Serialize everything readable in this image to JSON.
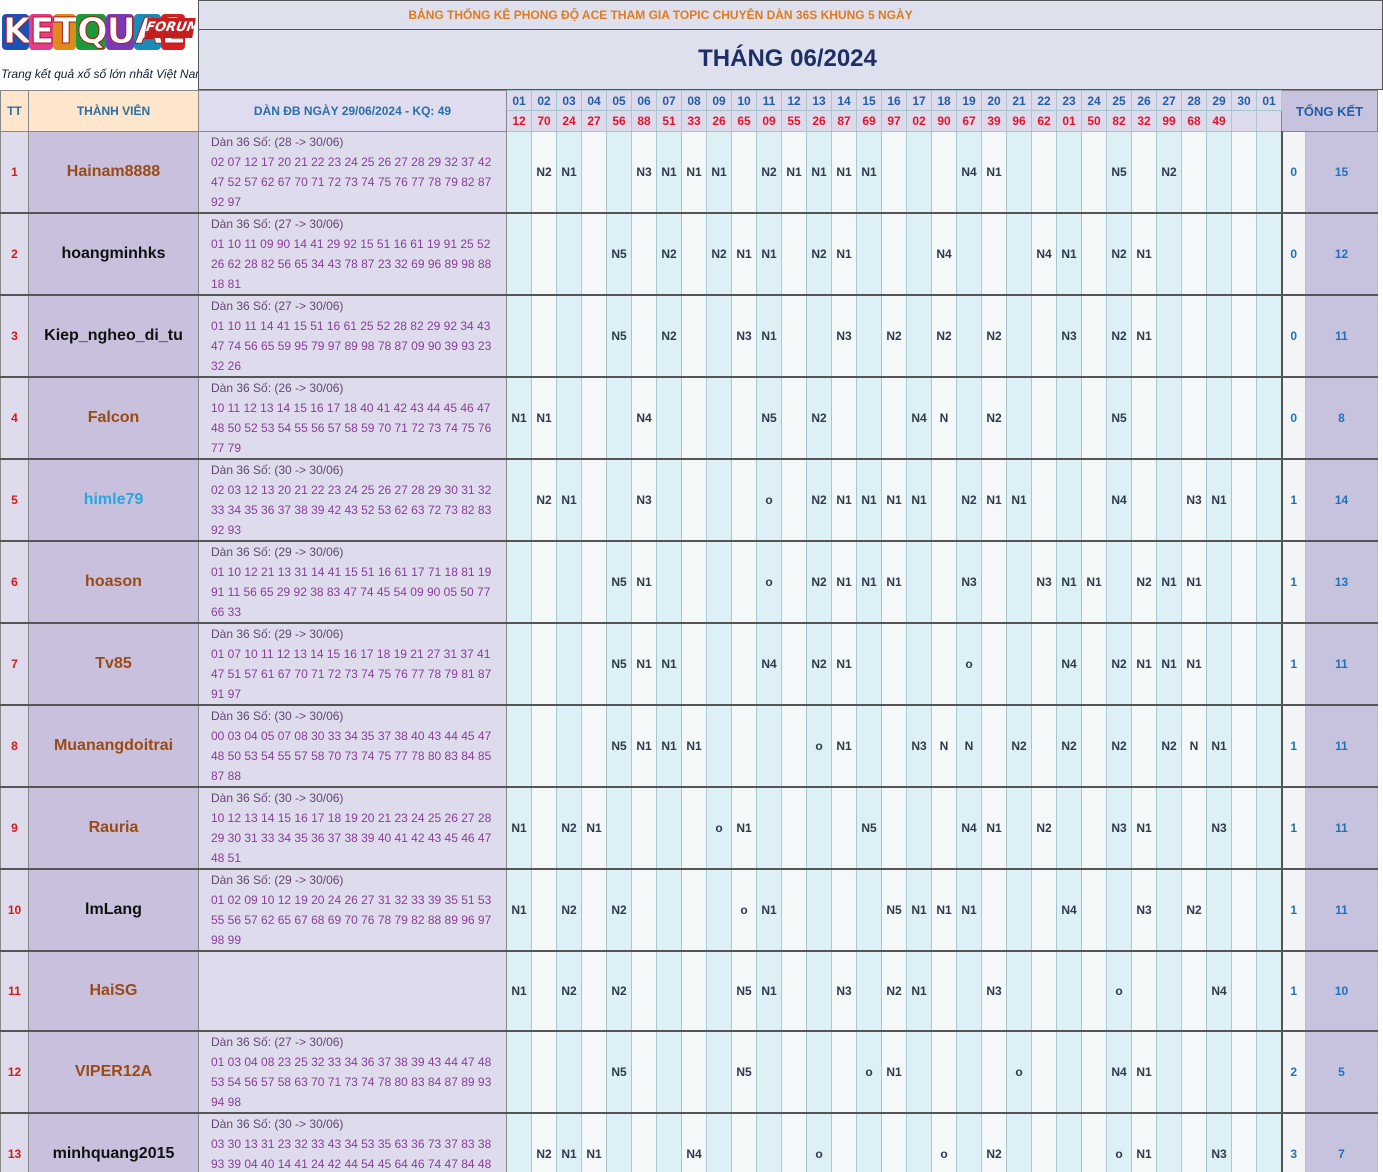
{
  "logo": {
    "brand_letters": [
      "K",
      "E",
      "T",
      "Q",
      "U",
      "A",
      "2"
    ],
    "forum_label": "FORUM",
    "tagline": "Trang kết quả xổ số lớn nhất Việt Nam"
  },
  "header": {
    "title": "BẢNG THỐNG KÊ PHONG ĐỘ ACE THAM GIA TOPIC CHUYÊN DÀN 36S KHUNG 5 NGÀY",
    "month": "THÁNG 06/2024"
  },
  "columns": {
    "tt": "TT",
    "member": "THÀNH VIÊN",
    "dan": "DÀN ĐB NGÀY 29/06/2024 - KQ: 49",
    "summary": "TỔNG KẾT"
  },
  "days": [
    "01",
    "02",
    "03",
    "04",
    "05",
    "06",
    "07",
    "08",
    "09",
    "10",
    "11",
    "12",
    "13",
    "14",
    "15",
    "16",
    "17",
    "18",
    "19",
    "20",
    "21",
    "22",
    "23",
    "24",
    "25",
    "26",
    "27",
    "28",
    "29",
    "30",
    "01"
  ],
  "results": [
    "12",
    "70",
    "24",
    "27",
    "56",
    "88",
    "51",
    "33",
    "26",
    "65",
    "09",
    "55",
    "26",
    "87",
    "69",
    "97",
    "02",
    "90",
    "67",
    "39",
    "96",
    "62",
    "01",
    "50",
    "82",
    "32",
    "99",
    "68",
    "49",
    "",
    ""
  ],
  "colors": {
    "member_brown": "#9a4a14",
    "member_black": "#111111",
    "member_cyan": "#24a8e0",
    "accent": "#e07a1d",
    "title_navy": "#1c2f66"
  },
  "rows": [
    {
      "tt": "1",
      "name": "Hainam8888",
      "name_color": "member_brown",
      "dan_head": "Dàn 36 Số: (28 -> 30/06)",
      "dan_body": "02 07 12 17 20 21 22 23 24 25 26 27 28 29 32 37 42 47 52 57 62 67 70 71 72 73 74 75 76 77 78 79 82 87 92 97",
      "marks": [
        "",
        "N2",
        "N1",
        "",
        "",
        "N3",
        "N1",
        "N1",
        "N1",
        "",
        "N2",
        "N1",
        "N1",
        "N1",
        "N1",
        "",
        "",
        "",
        "N4",
        "N1",
        "",
        "",
        "",
        "",
        "N5",
        "",
        "N2",
        "",
        "",
        "",
        ""
      ],
      "w": "0",
      "total": "15"
    },
    {
      "tt": "2",
      "name": "hoangminhks",
      "name_color": "member_black",
      "dan_head": "Dàn 36 Số: (27 -> 30/06)",
      "dan_body": "01 10 11 09 90 14 41 29 92 15 51 16 61 19 91 25 52 26 62 28 82 56 65 34 43 78 87 23 32 69 96 89 98 88 18 81",
      "marks": [
        "",
        "",
        "",
        "",
        "N5",
        "",
        "N2",
        "",
        "N2",
        "N1",
        "N1",
        "",
        "N2",
        "N1",
        "",
        "",
        "",
        "N4",
        "",
        "",
        "",
        "N4",
        "N1",
        "",
        "N2",
        "N1",
        "",
        "",
        "",
        "",
        ""
      ],
      "w": "0",
      "total": "12"
    },
    {
      "tt": "3",
      "name": "Kiep_ngheo_di_tu",
      "name_color": "member_black",
      "dan_head": "Dàn 36 Số: (27 -> 30/06)",
      "dan_body": "01 10 11 14 41 15 51 16 61 25 52 28 82 29 92 34 43 47 74 56 65 59 95 79 97 89 98 78 87 09 90 39 93 23 32 26",
      "marks": [
        "",
        "",
        "",
        "",
        "N5",
        "",
        "N2",
        "",
        "",
        "N3",
        "N1",
        "",
        "",
        "N3",
        "",
        "N2",
        "",
        "N2",
        "",
        "N2",
        "",
        "",
        "N3",
        "",
        "N2",
        "N1",
        "",
        "",
        "",
        "",
        ""
      ],
      "w": "0",
      "total": "11"
    },
    {
      "tt": "4",
      "name": "Falcon",
      "name_color": "member_brown",
      "dan_head": "Dàn 36 Số: (26 -> 30/06)",
      "dan_body": "10 11 12 13 14 15 16 17 18 40 41 42 43 44 45 46 47 48 50 52 53 54 55 56 57 58 59 70 71 72 73 74 75 76 77 79",
      "marks": [
        "N1",
        "N1",
        "",
        "",
        "",
        "N4",
        "",
        "",
        "",
        "",
        "N5",
        "",
        "N2",
        "",
        "",
        "",
        "N4",
        "N",
        "",
        "N2",
        "",
        "",
        "",
        "",
        "N5",
        "",
        "",
        "",
        "",
        "",
        ""
      ],
      "w": "0",
      "total": "8"
    },
    {
      "tt": "5",
      "name": "himle79",
      "name_color": "member_cyan",
      "dan_head": "Dàn 36 Số: (30 -> 30/06)",
      "dan_body": "02 03 12 13 20 21 22 23 24 25 26 27 28 29 30 31 32 33 34 35 36 37 38 39 42 43 52 53 62 63 72 73 82 83 92 93",
      "marks": [
        "",
        "N2",
        "N1",
        "",
        "",
        "N3",
        "",
        "",
        "",
        "",
        "o",
        "",
        "N2",
        "N1",
        "N1",
        "N1",
        "N1",
        "",
        "N2",
        "N1",
        "N1",
        "",
        "",
        "",
        "N4",
        "",
        "",
        "N3",
        "N1",
        "",
        ""
      ],
      "w": "1",
      "total": "14"
    },
    {
      "tt": "6",
      "name": "hoason",
      "name_color": "member_brown",
      "dan_head": "Dàn 36 Số: (29 -> 30/06)",
      "dan_body": "01 10 12 21 13 31 14 41 15 51 16 61 17 71 18 81 19 91 11 56 65 29 92 38 83 47 74 45 54 09 90 05 50 77 66 33",
      "marks": [
        "",
        "",
        "",
        "",
        "N5",
        "N1",
        "",
        "",
        "",
        "",
        "o",
        "",
        "N2",
        "N1",
        "N1",
        "N1",
        "",
        "",
        "N3",
        "",
        "",
        "N3",
        "N1",
        "N1",
        "",
        "N2",
        "N1",
        "N1",
        "",
        "",
        ""
      ],
      "w": "1",
      "total": "13"
    },
    {
      "tt": "7",
      "name": "Tv85",
      "name_color": "member_brown",
      "dan_head": "Dàn 36 Số: (29 -> 30/06)",
      "dan_body": "01 07 10 11 12 13 14 15 16 17 18 19 21 27 31 37 41 47 51 57 61 67 70 71 72 73 74 75 76 77 78 79 81 87 91 97",
      "marks": [
        "",
        "",
        "",
        "",
        "N5",
        "N1",
        "N1",
        "",
        "",
        "",
        "N4",
        "",
        "N2",
        "N1",
        "",
        "",
        "",
        "",
        "o",
        "",
        "",
        "",
        "N4",
        "",
        "N2",
        "N1",
        "N1",
        "N1",
        "",
        "",
        ""
      ],
      "w": "1",
      "total": "11"
    },
    {
      "tt": "8",
      "name": "Muanangdoitrai",
      "name_color": "member_brown",
      "dan_head": "Dàn 36 Số: (30 -> 30/06)",
      "dan_body": "00 03 04 05 07 08 30 33 34 35 37 38 40 43 44 45 47 48 50 53 54 55 57 58 70 73 74 75 77 78 80 83 84 85 87 88",
      "marks": [
        "",
        "",
        "",
        "",
        "N5",
        "N1",
        "N1",
        "N1",
        "",
        "",
        "",
        "",
        "o",
        "N1",
        "",
        "",
        "N3",
        "N",
        "N",
        "",
        "N2",
        "",
        "N2",
        "",
        "N2",
        "",
        "N2",
        "N",
        "N1",
        "",
        ""
      ],
      "w": "1",
      "total": "11"
    },
    {
      "tt": "9",
      "name": "Rauria",
      "name_color": "member_brown",
      "dan_head": "Dàn 36 Số: (30 -> 30/06)",
      "dan_body": "10 12 13 14 15 16 17 18 19 20 21 23 24 25 26 27 28 29 30 31 33 34 35 36 37 38 39 40 41 42 43 45 46 47 48 51",
      "marks": [
        "N1",
        "",
        "N2",
        "N1",
        "",
        "",
        "",
        "",
        "o",
        "N1",
        "",
        "",
        "",
        "",
        "N5",
        "",
        "",
        "",
        "N4",
        "N1",
        "",
        "N2",
        "",
        "",
        "N3",
        "N1",
        "",
        "",
        "N3",
        "",
        ""
      ],
      "w": "1",
      "total": "11"
    },
    {
      "tt": "10",
      "name": "lmLang",
      "name_color": "member_black",
      "dan_head": "Dàn 36 Số: (29 -> 30/06)",
      "dan_body": "01 02 09 10 12 19 20 24 26 27 31 32 33 39 35 51 53 55 56 57 62 65 67 68 69 70 76 78 79 82 88 89 96 97 98 99",
      "marks": [
        "N1",
        "",
        "N2",
        "",
        "N2",
        "",
        "",
        "",
        "",
        "o",
        "N1",
        "",
        "",
        "",
        "",
        "N5",
        "N1",
        "N1",
        "N1",
        "",
        "",
        "",
        "N4",
        "",
        "",
        "N3",
        "",
        "N2",
        "",
        "",
        ""
      ],
      "w": "1",
      "total": "11"
    },
    {
      "tt": "11",
      "name": "HaiSG",
      "name_color": "member_brown",
      "dan_head": "",
      "dan_body": "",
      "marks": [
        "N1",
        "",
        "N2",
        "",
        "N2",
        "",
        "",
        "",
        "",
        "N5",
        "N1",
        "",
        "",
        "N3",
        "",
        "N2",
        "N1",
        "",
        "",
        "N3",
        "",
        "",
        "",
        "",
        "o",
        "",
        "",
        "",
        "N4",
        "",
        ""
      ],
      "w": "1",
      "total": "10"
    },
    {
      "tt": "12",
      "name": "VIPER12A",
      "name_color": "member_brown",
      "dan_head": "Dàn 36 Số: (27 -> 30/06)",
      "dan_body": "01 03 04 08 23 25 32 33 34 36 37 38 39 43 44 47 48 53 54 56 57 58 63 70 71 73 74 78 80 83 84 87 89 93 94 98",
      "marks": [
        "",
        "",
        "",
        "",
        "N5",
        "",
        "",
        "",
        "",
        "N5",
        "",
        "",
        "",
        "",
        "o",
        "N1",
        "",
        "",
        "",
        "",
        "o",
        "",
        "",
        "",
        "N4",
        "N1",
        "",
        "",
        "",
        "",
        ""
      ],
      "w": "2",
      "total": "5"
    },
    {
      "tt": "13",
      "name": "minhquang2015",
      "name_color": "member_black",
      "dan_head": "Dàn 36 Số: (30 -> 30/06)",
      "dan_body": "03 30 13 31 23 32 33 43 34 53 35 63 36 73 37 83 38 93 39 04 40 14 41 24 42 44 54 45 64 46 74 47 84 48 94 49",
      "marks": [
        "",
        "N2",
        "N1",
        "N1",
        "",
        "",
        "",
        "N4",
        "",
        "",
        "",
        "",
        "o",
        "",
        "",
        "",
        "",
        "o",
        "",
        "N2",
        "",
        "",
        "",
        "",
        "o",
        "N1",
        "",
        "",
        "N3",
        "",
        ""
      ],
      "w": "3",
      "total": "7"
    }
  ]
}
